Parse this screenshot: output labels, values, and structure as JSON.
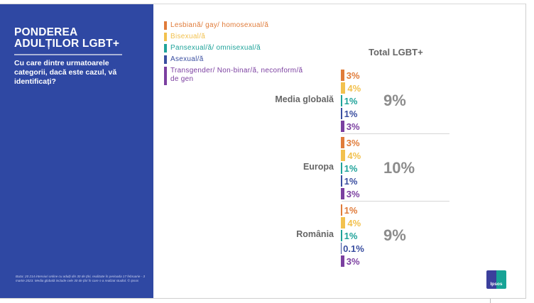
{
  "panel": {
    "title_line1": "PONDEREA",
    "title_line2": "ADULȚILOR LGBT+",
    "subtitle": "Cu care dintre urmatoarele categorii, dacă este cazul, vă identificați?",
    "footer": "Baza: 20 214 interviuri online cu adulți din 30 de țări, realizate în perioada 17 februarie - 3 martie 2023. Media globală include cele 30 de țări în care s-a realizat studiul. © Ipsos"
  },
  "logo_text": "Ipsos",
  "chart_data": {
    "type": "bar",
    "title": "Ponderea adulților LGBT+",
    "total_header": "Total LGBT+",
    "legend": [
      {
        "name": "Lesbiană/ gay/ homosexual/ă",
        "color": "#e07b39"
      },
      {
        "name": "Bisexual/ă",
        "color": "#f2c14e"
      },
      {
        "name": "Pansexual/ă/ omnisexual/ă",
        "color": "#1fa39a"
      },
      {
        "name": "Asexual/ă",
        "color": "#3a4ea0"
      },
      {
        "name": "Transgender/ Non-binar/ă, neconform/ă de gen",
        "color": "#7b3fa0"
      }
    ],
    "categories": [
      "Media globală",
      "Europa",
      "România"
    ],
    "groups": [
      {
        "name": "Media globală",
        "values": [
          3,
          4,
          1,
          1,
          3
        ],
        "labels": [
          "3%",
          "4%",
          "1%",
          "1%",
          "3%"
        ],
        "total": "9%"
      },
      {
        "name": "Europa",
        "values": [
          3,
          4,
          1,
          1,
          3
        ],
        "labels": [
          "3%",
          "4%",
          "1%",
          "1%",
          "3%"
        ],
        "total": "10%"
      },
      {
        "name": "România",
        "values": [
          1,
          4,
          1,
          0.1,
          3
        ],
        "labels": [
          "1%",
          "4%",
          "1%",
          "0.1%",
          "3%"
        ],
        "total": "9%"
      }
    ],
    "unit": "%"
  }
}
